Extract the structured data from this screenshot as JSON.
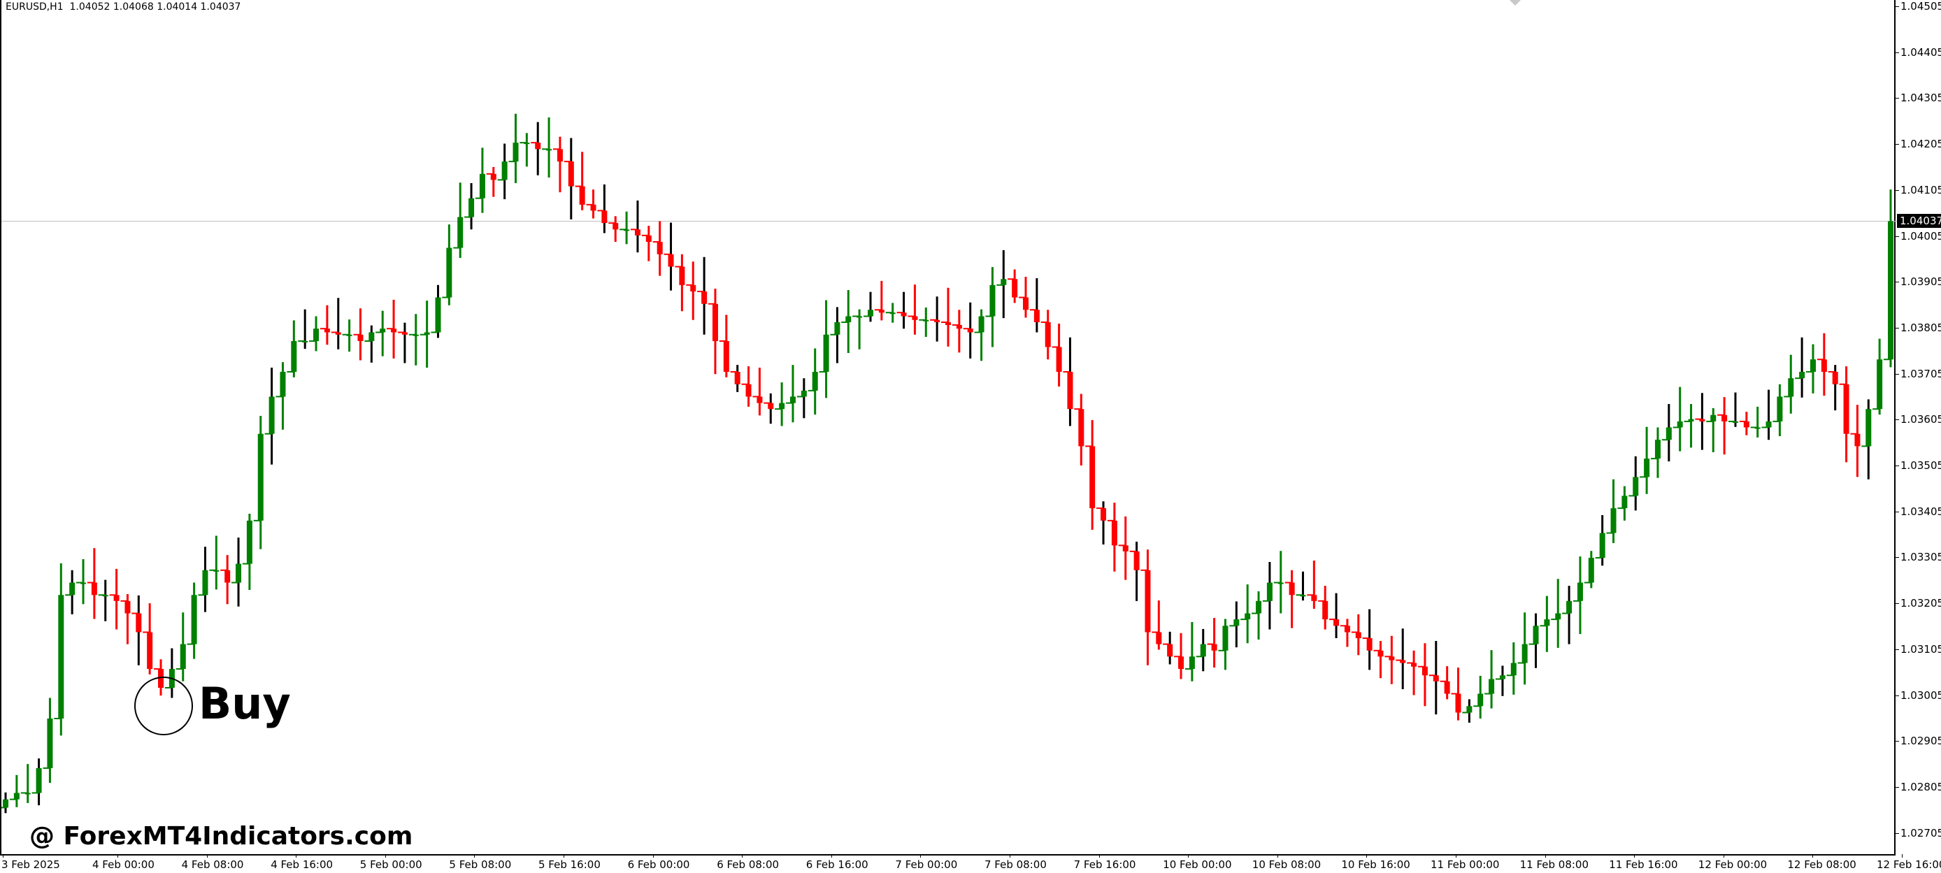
{
  "header": {
    "symbol_info": "EURUSD,H1  1.04052 1.04068 1.04014 1.04037"
  },
  "current_price": "1.04037",
  "annotations": {
    "buy_label": "Buy",
    "watermark": "@ ForexMT4Indicators.com"
  },
  "colors": {
    "bull": "#008000",
    "bear": "#ff0000",
    "wick": "#000000",
    "price_line": "#c0c0c0"
  },
  "price_axis": [
    "1.04505",
    "1.04405",
    "1.04305",
    "1.04205",
    "1.04105",
    "1.04005",
    "1.03905",
    "1.03805",
    "1.03705",
    "1.03605",
    "1.03505",
    "1.03405",
    "1.03305",
    "1.03205",
    "1.03105",
    "1.03005",
    "1.02905",
    "1.02805",
    "1.02705"
  ],
  "time_axis": [
    "3 Feb 2025",
    "4 Feb 00:00",
    "4 Feb 08:00",
    "4 Feb 16:00",
    "5 Feb 00:00",
    "5 Feb 08:00",
    "5 Feb 16:00",
    "6 Feb 00:00",
    "6 Feb 08:00",
    "6 Feb 16:00",
    "7 Feb 00:00",
    "7 Feb 08:00",
    "7 Feb 16:00",
    "10 Feb 00:00",
    "10 Feb 08:00",
    "10 Feb 16:00",
    "11 Feb 00:00",
    "11 Feb 08:00",
    "11 Feb 16:00",
    "12 Feb 00:00",
    "12 Feb 08:00",
    "12 Feb 16:00"
  ],
  "chart_data": {
    "type": "candlestick",
    "symbol": "EURUSD",
    "timeframe": "H1",
    "ylim": [
      1.0266,
      1.0452
    ],
    "first_open": 1.0276,
    "close": [
      1.02778,
      1.02792,
      1.02792,
      1.02846,
      1.02954,
      1.03223,
      1.0325,
      1.0325,
      1.03223,
      1.03223,
      1.0321,
      1.03183,
      1.03142,
      1.03062,
      1.03021,
      1.03062,
      1.03116,
      1.03223,
      1.03277,
      1.03277,
      1.0325,
      1.03291,
      1.03385,
      1.03574,
      1.03655,
      1.03709,
      1.03776,
      1.03776,
      1.03803,
      1.03795,
      1.0379,
      1.0379,
      1.03776,
      1.03795,
      1.03803,
      1.03795,
      1.0379,
      1.0379,
      1.03795,
      1.03871,
      1.03979,
      1.04046,
      1.04087,
      1.0414,
      1.04127,
      1.04167,
      1.04208,
      1.04208,
      1.04194,
      1.04194,
      1.04167,
      1.04113,
      1.04073,
      1.0406,
      1.04033,
      1.04019,
      1.04019,
      1.04006,
      1.03992,
      1.03965,
      1.03938,
      1.03898,
      1.03884,
      1.03857,
      1.03776,
      1.03709,
      1.03682,
      1.03655,
      1.03641,
      1.03628,
      1.03641,
      1.03655,
      1.03668,
      1.03709,
      1.0379,
      1.03817,
      1.0383,
      1.0383,
      1.03844,
      1.03838,
      1.03838,
      1.0383,
      1.03822,
      1.03822,
      1.03817,
      1.03811,
      1.03803,
      1.03795,
      1.0383,
      1.03898,
      1.03911,
      1.03871,
      1.03844,
      1.03817,
      1.03763,
      1.03709,
      1.03628,
      1.03547,
      1.03412,
      1.03385,
      1.03331,
      1.03318,
      1.03277,
      1.03142,
      1.03116,
      1.03089,
      1.03062,
      1.03089,
      1.03116,
      1.03102,
      1.03156,
      1.0317,
      1.03183,
      1.0321,
      1.0325,
      1.0325,
      1.03223,
      1.03223,
      1.0321,
      1.0317,
      1.03156,
      1.03142,
      1.03129,
      1.03102,
      1.03089,
      1.03081,
      1.03075,
      1.03067,
      1.03048,
      1.03035,
      1.03008,
      1.02967,
      1.02981,
      1.03008,
      1.0304,
      1.03048,
      1.03075,
      1.03116,
      1.03156,
      1.0317,
      1.03183,
      1.0321,
      1.0325,
      1.03304,
      1.03358,
      1.03412,
      1.03439,
      1.0348,
      1.0352,
      1.03561,
      1.03588,
      1.03601,
      1.03606,
      1.03601,
      1.03615,
      1.03601,
      1.03601,
      1.03588,
      1.03588,
      1.03601,
      1.03655,
      1.03695,
      1.03709,
      1.03736,
      1.03709,
      1.03682,
      1.03574,
      1.03547,
      1.03628,
      1.03736,
      1.04037
    ]
  }
}
